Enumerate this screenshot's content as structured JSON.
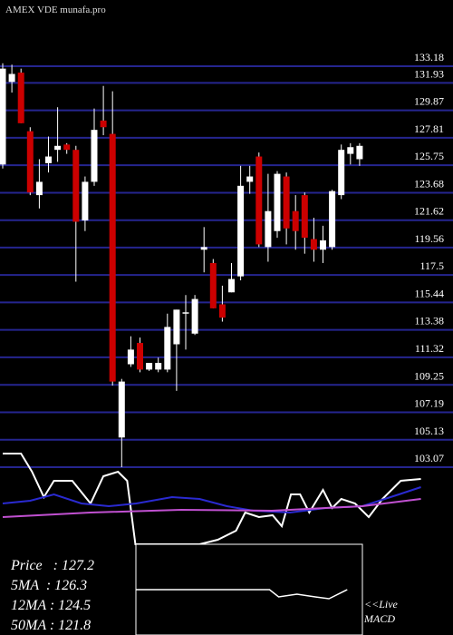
{
  "chart_data": [
    {
      "type": "candlestick",
      "title": "AMEX VDE munafa.pro",
      "ylim": [
        103.07,
        133.18
      ],
      "yticks": [
        133.18,
        131.93,
        129.87,
        127.81,
        125.75,
        123.68,
        121.62,
        119.56,
        117.5,
        115.44,
        113.38,
        111.32,
        109.25,
        107.19,
        105.13,
        103.07
      ],
      "grid": true,
      "grid_color": "#25258f",
      "up_color": "#ffffff",
      "down_color": "#cc0000",
      "open": [
        125.8,
        132.0,
        132.7,
        128.3,
        123.5,
        125.9,
        126.9,
        127.3,
        126.9,
        121.6,
        124.5,
        129.1,
        128.1,
        105.3,
        110.8,
        112.4,
        110.4,
        110.4,
        110.4,
        112.3,
        114.6,
        113.1,
        119.4,
        118.4,
        115.3,
        116.2,
        117.4,
        124.5,
        126.4,
        119.6,
        120.8,
        124.9,
        122.3,
        123.5,
        120.2,
        119.4,
        119.6,
        123.5,
        126.6,
        126.2
      ],
      "high": [
        133.4,
        133.3,
        133.0,
        128.6,
        126.2,
        127.9,
        130.1,
        127.4,
        127.2,
        124.9,
        130.0,
        131.7,
        131.3,
        109.7,
        112.9,
        112.8,
        110.9,
        111.3,
        114.6,
        114.9,
        116.0,
        116.0,
        121.1,
        118.7,
        116.7,
        118.4,
        125.7,
        125.7,
        126.7,
        125.1,
        125.3,
        125.2,
        123.5,
        123.7,
        121.8,
        121.2,
        123.9,
        127.3,
        127.4,
        127.4
      ],
      "low": [
        125.5,
        131.2,
        128.9,
        123.5,
        122.5,
        125.2,
        126.0,
        126.6,
        117.0,
        120.8,
        124.2,
        128.0,
        109.2,
        103.07,
        110.6,
        110.2,
        110.3,
        110.2,
        110.2,
        108.8,
        111.9,
        113.0,
        117.7,
        115.0,
        114.0,
        116.2,
        117.1,
        123.6,
        119.6,
        118.5,
        120.3,
        119.8,
        119.4,
        119.1,
        118.5,
        118.4,
        119.4,
        123.2,
        125.8,
        125.7
      ],
      "close": [
        133.0,
        132.6,
        128.9,
        123.7,
        124.5,
        126.4,
        127.2,
        126.9,
        121.5,
        124.5,
        128.4,
        128.6,
        109.5,
        109.5,
        111.9,
        110.4,
        110.9,
        110.9,
        113.6,
        114.9,
        114.7,
        115.7,
        119.6,
        115.0,
        114.3,
        117.2,
        124.2,
        124.9,
        119.8,
        122.3,
        125.1,
        121.0,
        120.8,
        120.3,
        119.4,
        120.1,
        123.8,
        126.9,
        127.1,
        127.2
      ]
    },
    {
      "type": "line",
      "ylim": [
        0,
        100
      ],
      "series": [
        {
          "color": "#ffffff",
          "x": [
            0,
            2,
            3.2,
            4.5,
            5.6,
            7.6,
            9.6,
            11,
            12.6,
            13.6,
            14.5,
            21.5,
            23.5,
            25.5,
            26.5,
            28,
            29.5,
            30.5,
            31.5,
            32.5,
            33.5,
            35,
            36,
            37,
            38.5,
            40,
            41.5,
            43.5,
            45.7
          ],
          "values": [
            100,
            100,
            90,
            76,
            85,
            85,
            72.5,
            87.5,
            90,
            85,
            50,
            50,
            52.5,
            57.5,
            67.5,
            65,
            66,
            60,
            77.5,
            77.5,
            67.5,
            80,
            70,
            75,
            72.5,
            65,
            75,
            85,
            86
          ]
        },
        {
          "color": "#2a2ad0",
          "x": [
            0,
            3,
            5.6,
            8.6,
            11.6,
            14.6,
            18.5,
            21.5,
            24.5,
            27.4,
            31.4,
            35.3,
            39.3,
            43.3,
            45.7
          ],
          "values": [
            72.5,
            74,
            77.5,
            72.5,
            71,
            72.5,
            76,
            75,
            71,
            68.5,
            67.5,
            70,
            71,
            77.5,
            81.5
          ]
        },
        {
          "color": "#c050d0",
          "x": [
            0,
            9.6,
            19.5,
            29.4,
            39.3,
            45.7
          ],
          "values": [
            65,
            67.5,
            69,
            68.5,
            71,
            75
          ]
        }
      ]
    },
    {
      "type": "macd",
      "label": "<<Live MACD",
      "ylim": [
        0,
        100
      ],
      "x": [
        0,
        14.6,
        15.6,
        17.6,
        19.6,
        21.1,
        23.1
      ],
      "values": [
        25,
        25,
        21,
        22.5,
        21,
        20,
        25
      ]
    }
  ],
  "stats": [
    "Price   : 127.2",
    "5MA  : 126.3",
    "12MA : 124.5",
    "50MA : 121.8"
  ]
}
